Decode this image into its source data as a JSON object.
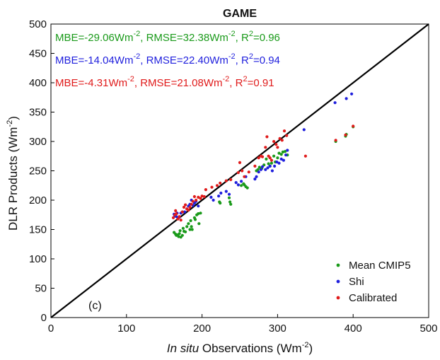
{
  "chart_data": {
    "type": "scatter",
    "title": "GAME",
    "xlabel": {
      "italic": "In situ",
      "rest": " Observations (Wm",
      "sup": "-2",
      "close": ")"
    },
    "ylabel": {
      "main": "DLR Products (Wm",
      "sup": "-2",
      "close": ")"
    },
    "xlim": [
      0,
      500
    ],
    "ylim": [
      0,
      500
    ],
    "xticks": [
      0,
      100,
      200,
      300,
      400,
      500
    ],
    "yticks": [
      0,
      50,
      100,
      150,
      200,
      250,
      300,
      350,
      400,
      450,
      500
    ],
    "grid": false,
    "legend_position": "bottom-right",
    "panel_label": "(c)",
    "reference_line": {
      "from": [
        0,
        0
      ],
      "to": [
        500,
        500
      ],
      "label": "1:1 line"
    },
    "stats": [
      {
        "series": "Mean CMIP5",
        "color": "#1a9a1a",
        "mbe_prefix": "MBE=-29.06Wm",
        "sup": "-2",
        "rest": ",  RMSE=32.38Wm",
        "r2_prefix": ", R",
        "r2_sup": "2",
        "r2_value": "=0.96"
      },
      {
        "series": "Shi",
        "color": "#1f1fdd",
        "mbe_prefix": "MBE=-14.04Wm",
        "sup": "-2",
        "rest": ",  RMSE=22.40Wm",
        "r2_prefix": ", R",
        "r2_sup": "2",
        "r2_value": "=0.94"
      },
      {
        "series": "Calibrated",
        "color": "#e01b1b",
        "mbe_prefix": "MBE=-4.31Wm",
        "sup": "-2",
        "rest": ",  RMSE=21.08Wm",
        "r2_prefix": ", R",
        "r2_sup": "2",
        "r2_value": "=0.91"
      }
    ],
    "series": [
      {
        "name": "Mean CMIP5",
        "color": "#1a9a1a",
        "points": [
          [
            163,
            145
          ],
          [
            165,
            142
          ],
          [
            166,
            140
          ],
          [
            168,
            141
          ],
          [
            169,
            138
          ],
          [
            170,
            143
          ],
          [
            171,
            148
          ],
          [
            172,
            137
          ],
          [
            174,
            140
          ],
          [
            175,
            152
          ],
          [
            176,
            147
          ],
          [
            178,
            146
          ],
          [
            180,
            155
          ],
          [
            182,
            160
          ],
          [
            184,
            150
          ],
          [
            185,
            165
          ],
          [
            186,
            155
          ],
          [
            187,
            150
          ],
          [
            190,
            170
          ],
          [
            191,
            167
          ],
          [
            193,
            175
          ],
          [
            195,
            177
          ],
          [
            196,
            160
          ],
          [
            198,
            178
          ],
          [
            223,
            197
          ],
          [
            224,
            195
          ],
          [
            236,
            204
          ],
          [
            237,
            197
          ],
          [
            238,
            193
          ],
          [
            252,
            225
          ],
          [
            255,
            228
          ],
          [
            256,
            226
          ],
          [
            258,
            223
          ],
          [
            260,
            221
          ],
          [
            272,
            250
          ],
          [
            274,
            252
          ],
          [
            276,
            256
          ],
          [
            279,
            254
          ],
          [
            282,
            260
          ],
          [
            285,
            270
          ],
          [
            288,
            262
          ],
          [
            290,
            258
          ],
          [
            292,
            263
          ],
          [
            295,
            275
          ],
          [
            297,
            265
          ],
          [
            300,
            272
          ],
          [
            302,
            280
          ],
          [
            305,
            278
          ],
          [
            307,
            282
          ],
          [
            310,
            283
          ],
          [
            313,
            277
          ],
          [
            377,
            300
          ],
          [
            390,
            309
          ],
          [
            391,
            312
          ],
          [
            400,
            325
          ]
        ]
      },
      {
        "name": "Shi",
        "color": "#1f1fdd",
        "points": [
          [
            163,
            176
          ],
          [
            164,
            173
          ],
          [
            166,
            172
          ],
          [
            167,
            178
          ],
          [
            168,
            170
          ],
          [
            170,
            171
          ],
          [
            172,
            178
          ],
          [
            174,
            180
          ],
          [
            177,
            180
          ],
          [
            180,
            185
          ],
          [
            182,
            190
          ],
          [
            184,
            193
          ],
          [
            186,
            200
          ],
          [
            188,
            191
          ],
          [
            190,
            195
          ],
          [
            192,
            198
          ],
          [
            195,
            190
          ],
          [
            212,
            205
          ],
          [
            215,
            200
          ],
          [
            222,
            207
          ],
          [
            225,
            212
          ],
          [
            232,
            215
          ],
          [
            236,
            210
          ],
          [
            245,
            230
          ],
          [
            248,
            226
          ],
          [
            252,
            232
          ],
          [
            258,
            240
          ],
          [
            270,
            236
          ],
          [
            272,
            240
          ],
          [
            275,
            248
          ],
          [
            278,
            252
          ],
          [
            280,
            257
          ],
          [
            284,
            252
          ],
          [
            287,
            255
          ],
          [
            290,
            258
          ],
          [
            293,
            250
          ],
          [
            296,
            258
          ],
          [
            299,
            265
          ],
          [
            302,
            263
          ],
          [
            305,
            270
          ],
          [
            308,
            268
          ],
          [
            311,
            277
          ],
          [
            313,
            285
          ],
          [
            335,
            320
          ],
          [
            376,
            366
          ],
          [
            391,
            373
          ],
          [
            398,
            381
          ]
        ]
      },
      {
        "name": "Calibrated",
        "color": "#e01b1b",
        "points": [
          [
            162,
            170
          ],
          [
            164,
            175
          ],
          [
            165,
            182
          ],
          [
            166,
            177
          ],
          [
            168,
            168
          ],
          [
            170,
            172
          ],
          [
            172,
            166
          ],
          [
            174,
            180
          ],
          [
            176,
            188
          ],
          [
            178,
            192
          ],
          [
            180,
            185
          ],
          [
            182,
            183
          ],
          [
            184,
            188
          ],
          [
            186,
            193
          ],
          [
            188,
            198
          ],
          [
            190,
            206
          ],
          [
            192,
            200
          ],
          [
            195,
            205
          ],
          [
            198,
            203
          ],
          [
            200,
            207
          ],
          [
            203,
            206
          ],
          [
            205,
            218
          ],
          [
            213,
            222
          ],
          [
            220,
            225
          ],
          [
            224,
            229
          ],
          [
            232,
            233
          ],
          [
            238,
            235
          ],
          [
            248,
            247
          ],
          [
            250,
            264
          ],
          [
            253,
            250
          ],
          [
            256,
            240
          ],
          [
            262,
            248
          ],
          [
            270,
            258
          ],
          [
            275,
            272
          ],
          [
            278,
            275
          ],
          [
            280,
            274
          ],
          [
            284,
            290
          ],
          [
            286,
            308
          ],
          [
            288,
            275
          ],
          [
            290,
            272
          ],
          [
            292,
            268
          ],
          [
            295,
            300
          ],
          [
            298,
            295
          ],
          [
            300,
            290
          ],
          [
            303,
            305
          ],
          [
            306,
            302
          ],
          [
            309,
            318
          ],
          [
            312,
            310
          ],
          [
            337,
            275
          ],
          [
            377,
            302
          ],
          [
            390,
            311
          ],
          [
            400,
            326
          ]
        ]
      }
    ]
  }
}
